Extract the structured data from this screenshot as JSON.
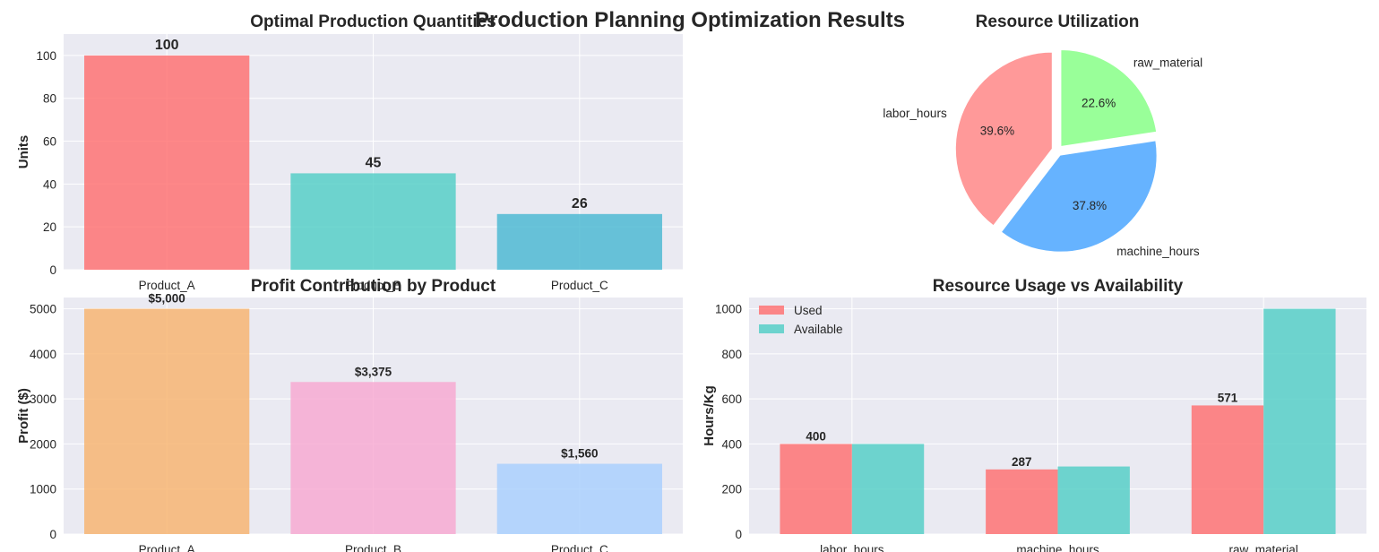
{
  "title": "Production Planning Optimization Results",
  "chart_data": [
    {
      "id": "quantities",
      "type": "bar",
      "title": "Optimal Production Quantities",
      "xlabel": "",
      "ylabel": "Units",
      "categories": [
        "Product_A",
        "Product_B",
        "Product_C"
      ],
      "values": [
        100,
        45,
        26
      ],
      "value_labels": [
        "100",
        "45",
        "26"
      ],
      "colors": [
        "#ff6b6b",
        "#4ecdc4",
        "#45b7d1"
      ],
      "ylim": [
        0,
        110
      ],
      "yticks": [
        0,
        20,
        40,
        60,
        80,
        100
      ],
      "grid": true
    },
    {
      "id": "utilization",
      "type": "pie",
      "title": "Resource Utilization",
      "labels": [
        "labor_hours",
        "machine_hours",
        "raw_material"
      ],
      "values": [
        39.6,
        37.8,
        22.6
      ],
      "pct_labels": [
        "39.6%",
        "37.8%",
        "22.6%"
      ],
      "colors": [
        "#ff9999",
        "#66b3ff",
        "#99ff99"
      ],
      "exploded": true
    },
    {
      "id": "profit",
      "type": "bar",
      "title": "Profit Contribution by Product",
      "xlabel": "",
      "ylabel": "Profit ($)",
      "categories": [
        "Product_A",
        "Product_B",
        "Product_C"
      ],
      "values": [
        5000,
        3375,
        1560
      ],
      "value_labels": [
        "$5,000",
        "$3,375",
        "$1,560"
      ],
      "colors": [
        "#f8b26a",
        "#f7a6d0",
        "#a6cefe"
      ],
      "ylim": [
        0,
        5250
      ],
      "yticks": [
        0,
        1000,
        2000,
        3000,
        4000,
        5000
      ],
      "grid": true
    },
    {
      "id": "resources",
      "type": "bar",
      "title": "Resource Usage vs Availability",
      "xlabel": "",
      "ylabel": "Hours/Kg",
      "categories": [
        "labor_hours",
        "machine_hours",
        "raw_material"
      ],
      "series": [
        {
          "name": "Used",
          "values": [
            400,
            287,
            571
          ],
          "value_labels": [
            "400",
            "287",
            "571"
          ],
          "color": "#ff6b6b"
        },
        {
          "name": "Available",
          "values": [
            400,
            300,
            1000
          ],
          "color": "#4ecdc4"
        }
      ],
      "ylim": [
        0,
        1050
      ],
      "yticks": [
        0,
        200,
        400,
        600,
        800,
        1000
      ],
      "legend": "top-left",
      "grid": true
    }
  ]
}
